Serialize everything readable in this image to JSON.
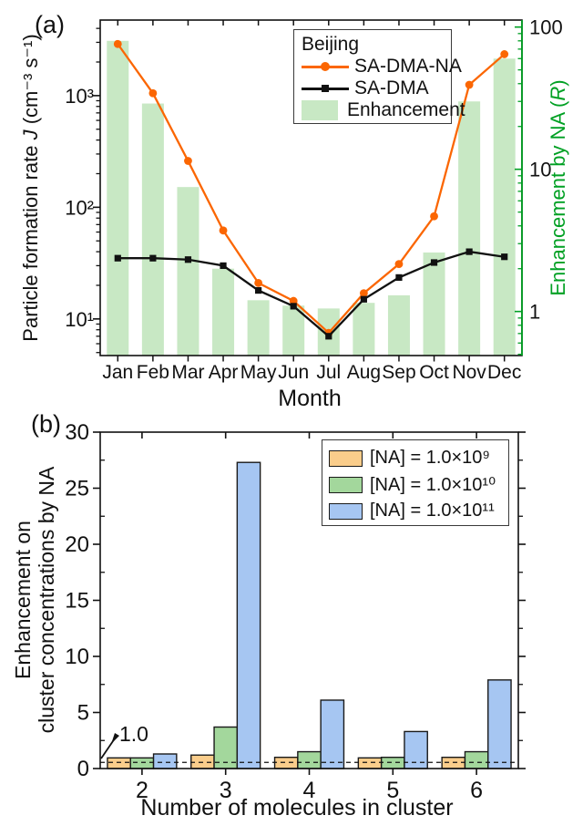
{
  "figure": {
    "panel_a_label": "(a)",
    "panel_b_label": "(b)",
    "axis_green": "#00A023"
  },
  "chart_data": [
    {
      "id": "panel_a",
      "type": "line+bar",
      "x": {
        "label": "Month",
        "categories": [
          "Jan",
          "Feb",
          "Mar",
          "Apr",
          "May",
          "Jun",
          "Jul",
          "Aug",
          "Sep",
          "Oct",
          "Nov",
          "Dec"
        ]
      },
      "y_left": {
        "label_pre": "Particle formation rate ",
        "label_var": "J",
        "label_post": "  (cm⁻³ s⁻¹)",
        "scale": "log",
        "min": 4.7,
        "max": 4750,
        "ticks": [
          {
            "v": 10,
            "t": "10¹"
          },
          {
            "v": 100,
            "t": "10²"
          },
          {
            "v": 1000,
            "t": "10³"
          }
        ]
      },
      "y_right": {
        "label_pre": "Enhancement by NA (",
        "label_var": "R",
        "label_post": ")",
        "scale": "log",
        "min": 0.49,
        "max": 112,
        "color": "#00A023",
        "ticks": [
          {
            "v": 1,
            "t": "1"
          },
          {
            "v": 10,
            "t": "10"
          },
          {
            "v": 100,
            "t": "100"
          }
        ]
      },
      "legend_title": "Beijing",
      "series": [
        {
          "name": "SA-DMA-NA",
          "type": "line",
          "axis": "left",
          "marker": "circle",
          "color": "#FB6602",
          "values": [
            2900,
            1050,
            260,
            62,
            21,
            14.5,
            7.5,
            17,
            31,
            83,
            1250,
            2350
          ]
        },
        {
          "name": "SA-DMA",
          "type": "line",
          "axis": "left",
          "marker": "square",
          "color": "#111111",
          "values": [
            35,
            35,
            34,
            30,
            18,
            13,
            7,
            15,
            23.5,
            32,
            40,
            36
          ]
        },
        {
          "name": "Enhancement",
          "type": "bar",
          "axis": "right",
          "color": "#C8E8C4",
          "values": [
            80,
            29,
            7.5,
            2.0,
            1.2,
            1.1,
            1.05,
            1.15,
            1.3,
            2.6,
            30,
            60
          ]
        }
      ]
    },
    {
      "id": "panel_b",
      "type": "bar",
      "x": {
        "label": "Number of molecules in cluster",
        "categories": [
          "2",
          "3",
          "4",
          "5",
          "6"
        ]
      },
      "y": {
        "label_line1": "Enhancement on",
        "label_line2": "cluster concentrations by NA",
        "min": 0,
        "max": 30,
        "tick_step": 5,
        "minor_step": 2.5,
        "tick_labels": [
          "0",
          "5",
          "10",
          "15",
          "20",
          "25",
          "30"
        ]
      },
      "reference_line": {
        "value": 0.55,
        "style": "dashed",
        "color": "#111111"
      },
      "annotation": {
        "text": "1.0"
      },
      "bar_border": "#1a1a1a",
      "series": [
        {
          "name": "[NA] = 1.0×10⁹",
          "color": "#FACD8B",
          "values": [
            0.95,
            1.2,
            1.0,
            0.95,
            1.0
          ]
        },
        {
          "name": "[NA] = 1.0×10¹⁰",
          "color": "#A3D79C",
          "values": [
            0.95,
            3.7,
            1.5,
            1.0,
            1.5
          ]
        },
        {
          "name": "[NA] = 1.0×10¹¹",
          "color": "#A6C6F2",
          "values": [
            1.3,
            27.3,
            6.1,
            3.3,
            7.9
          ]
        }
      ]
    }
  ]
}
